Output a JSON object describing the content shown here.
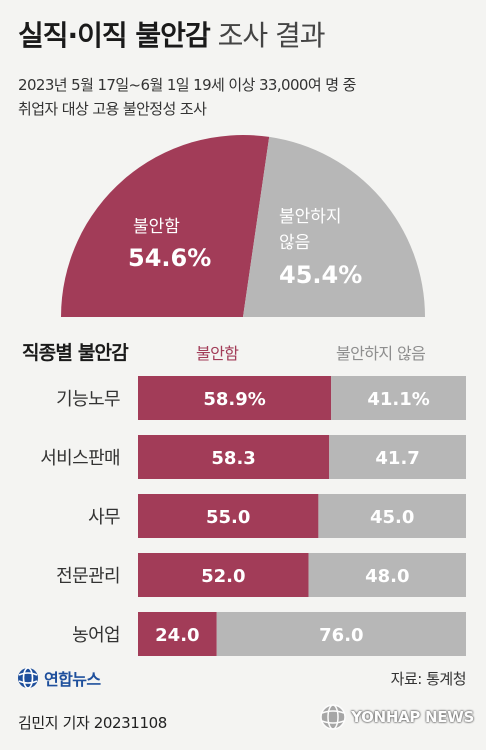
{
  "title": {
    "bold": "실직·이직 불안감",
    "light": "조사 결과"
  },
  "subtitle": {
    "line1": "2023년 5월 17일~6월 1일 19세 이상 33,000여 명 중",
    "line2": "취업자 대상 고용 불안정성 조사"
  },
  "colors": {
    "anxious": "#a23c58",
    "not_anxious": "#b7b7b7"
  },
  "chart_data": [
    {
      "type": "pie",
      "slices": [
        {
          "label": "불안함",
          "value": 54.6,
          "display": "54.6%"
        },
        {
          "label": "불안하지 않음",
          "label_lines": [
            "불안하지",
            "않음"
          ],
          "value": 45.4,
          "display": "45.4%"
        }
      ]
    },
    {
      "type": "bar",
      "title": "직종별 불안감",
      "series_names": [
        "불안함",
        "불안하지 않음"
      ],
      "categories": [
        "기능노무",
        "서비스판매",
        "사무",
        "전문관리",
        "농어업"
      ],
      "series": [
        {
          "name": "불안함",
          "values": [
            58.9,
            58.3,
            55.0,
            52.0,
            24.0
          ],
          "labels": [
            "58.9%",
            "58.3",
            "55.0",
            "52.0",
            "24.0"
          ]
        },
        {
          "name": "불안하지 않음",
          "values": [
            41.1,
            41.7,
            45.0,
            48.0,
            76.0
          ],
          "labels": [
            "41.1%",
            "41.7",
            "45.0",
            "48.0",
            "76.0"
          ]
        }
      ]
    }
  ],
  "source": "자료: 통계청",
  "credit": "김민지 기자  20231108",
  "logo": "연합뉴스",
  "watermark": "YONHAP NEWS"
}
